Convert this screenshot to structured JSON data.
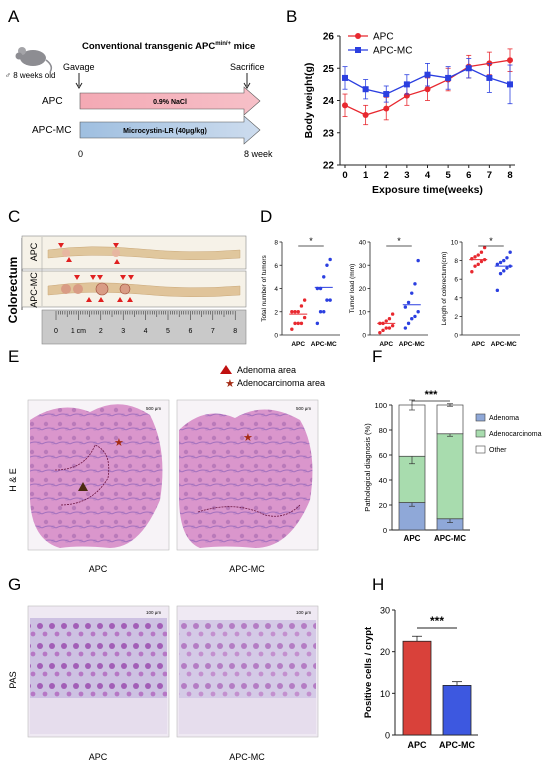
{
  "panels": {
    "A": "A",
    "B": "B",
    "C": "C",
    "D": "D",
    "E": "E",
    "F": "F",
    "G": "G",
    "H": "H"
  },
  "panel_a": {
    "title_main": "Conventional transgenic APC",
    "title_sup": "min/+",
    "title_tail": " mice",
    "mouse_age": "♂ 8 weeks old",
    "gavage": "Gavage",
    "sacrifice": "Sacrifice",
    "group1": "APC",
    "group2": "APC-MC",
    "treat1": "0.9% NaCl",
    "treat2": "Microcystin-LR (40μg/kg)",
    "start": "0",
    "end": "8 week",
    "colors": {
      "apc_arrow": "#f4a9b4",
      "mc_arrow": "#b6cde6"
    }
  },
  "panel_c": {
    "organ": "Colorectum",
    "row1": "APC",
    "row2": "APC-MC",
    "ruler_ticks": [
      "0",
      "1 cm",
      "2",
      "3",
      "4",
      "5",
      "6",
      "7",
      "8"
    ]
  },
  "panel_e": {
    "legend1": "Adenoma area",
    "legend2": "Adenocarcinoma area",
    "stain": "H & E",
    "scale": "500 μm",
    "label1": "APC",
    "label2": "APC-MC"
  },
  "panel_g": {
    "stain": "PAS",
    "scale": "100 μm",
    "label1": "APC",
    "label2": "APC-MC"
  },
  "chart_data": [
    {
      "panel": "B",
      "type": "line",
      "xlabel": "Exposure time(weeks)",
      "ylabel": "Body weight(g)",
      "x": [
        0,
        1,
        2,
        3,
        4,
        5,
        6,
        7,
        8
      ],
      "xlim": [
        0,
        8
      ],
      "ylim": [
        22,
        26
      ],
      "yticks": [
        22,
        23,
        24,
        25,
        26
      ],
      "legend": "top-left",
      "series": [
        {
          "name": "APC",
          "color": "#e8282f",
          "marker": "circle",
          "values": [
            23.85,
            23.55,
            23.75,
            24.15,
            24.35,
            24.65,
            25.05,
            25.15,
            25.25
          ],
          "errors": [
            0.35,
            0.3,
            0.35,
            0.3,
            0.35,
            0.35,
            0.35,
            0.35,
            0.35
          ]
        },
        {
          "name": "APC-MC",
          "color": "#2b3fe0",
          "marker": "square",
          "values": [
            24.7,
            24.35,
            24.2,
            24.5,
            24.8,
            24.7,
            25.0,
            24.7,
            24.5
          ],
          "errors": [
            0.35,
            0.3,
            0.25,
            0.3,
            0.35,
            0.35,
            0.3,
            0.45,
            0.6
          ]
        }
      ]
    },
    {
      "panel": "D1",
      "type": "scatter",
      "ylabel": "Total number of tumors",
      "ylim": [
        0,
        8
      ],
      "yticks": [
        0,
        2,
        4,
        6,
        8
      ],
      "categories": [
        "APC",
        "APC-MC"
      ],
      "significance": "*",
      "series": [
        {
          "name": "APC",
          "color": "#e8282f",
          "values": [
            0.5,
            1,
            1,
            1,
            1.5,
            2,
            2,
            2,
            2.5,
            3
          ],
          "mean": 1.8
        },
        {
          "name": "APC-MC",
          "color": "#2b3fe0",
          "values": [
            1,
            2,
            2,
            3,
            3,
            4,
            4,
            5,
            6,
            6.5
          ],
          "mean": 4.1
        }
      ]
    },
    {
      "panel": "D2",
      "type": "scatter",
      "ylabel": "Tumor load (mm)",
      "ylim": [
        0,
        40
      ],
      "yticks": [
        0,
        10,
        20,
        30,
        40
      ],
      "categories": [
        "APC",
        "APC-MC"
      ],
      "significance": "*",
      "series": [
        {
          "name": "APC",
          "color": "#e8282f",
          "values": [
            1,
            2,
            3,
            3,
            4,
            5,
            5,
            6,
            7,
            9
          ],
          "mean": 5
        },
        {
          "name": "APC-MC",
          "color": "#2b3fe0",
          "values": [
            3,
            5,
            7,
            8,
            10,
            12,
            14,
            18,
            22,
            32
          ],
          "mean": 13
        }
      ]
    },
    {
      "panel": "D3",
      "type": "scatter",
      "ylabel": "Length of colorectum(cm)",
      "ylim": [
        0,
        10
      ],
      "yticks": [
        0,
        2,
        4,
        6,
        8,
        10
      ],
      "categories": [
        "APC",
        "APC-MC"
      ],
      "significance": "*",
      "series": [
        {
          "name": "APC",
          "color": "#e8282f",
          "values": [
            6.8,
            7.4,
            7.6,
            7.9,
            8.1,
            8.2,
            8.4,
            8.6,
            8.9,
            9.4
          ],
          "mean": 8.1
        },
        {
          "name": "APC-MC",
          "color": "#2b3fe0",
          "values": [
            4.8,
            6.6,
            6.9,
            7.2,
            7.4,
            7.6,
            7.8,
            8.0,
            8.3,
            8.9
          ],
          "mean": 7.4
        }
      ]
    },
    {
      "panel": "F",
      "type": "bar",
      "stacked": true,
      "ylabel": "Pathological diagnosis (%)",
      "ylim": [
        0,
        100
      ],
      "yticks": [
        0,
        20,
        40,
        60,
        80,
        100
      ],
      "categories": [
        "APC",
        "APC-MC"
      ],
      "significance": "***",
      "series": [
        {
          "name": "Adenoma",
          "color": "#8fa8d8",
          "values": [
            22,
            9
          ],
          "errors": [
            3,
            3
          ]
        },
        {
          "name": "Adenocarcinoma",
          "color": "#a8dcae",
          "values": [
            37,
            68
          ],
          "errors": [
            6,
            2
          ]
        },
        {
          "name": "Other",
          "color": "#ffffff",
          "values": [
            41,
            23
          ],
          "errors": [
            4,
            1
          ]
        }
      ]
    },
    {
      "panel": "H",
      "type": "bar",
      "ylabel": "Positive cells / crypt",
      "ylim": [
        0,
        30
      ],
      "yticks": [
        0,
        10,
        20,
        30
      ],
      "categories": [
        "APC",
        "APC-MC"
      ],
      "significance": "***",
      "values": [
        22.5,
        11.9
      ],
      "errors": [
        1.2,
        0.9
      ],
      "colors": [
        "#d9413a",
        "#3d58e0"
      ]
    }
  ]
}
